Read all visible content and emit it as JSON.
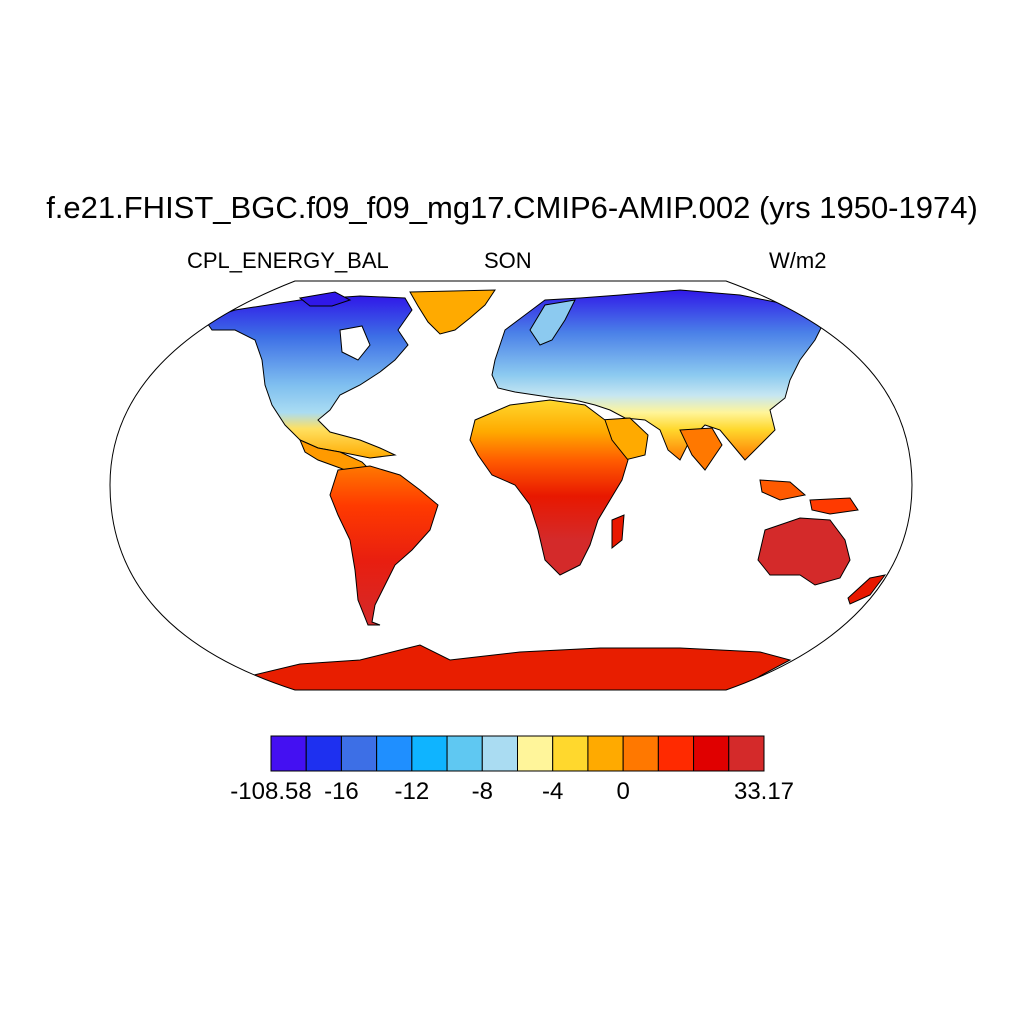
{
  "title": "f.e21.FHIST_BGC.f09_f09_mg17.CMIP6-AMIP.002 (yrs 1950-1974)",
  "variable": "CPL_ENERGY_BAL",
  "season": "SON",
  "units": "W/m2",
  "colorbar": {
    "colors": [
      "#4410f2",
      "#1e30f0",
      "#3d6fe6",
      "#1f8fff",
      "#0fb4ff",
      "#5fc8f2",
      "#aadcf2",
      "#fff59a",
      "#ffd82d",
      "#ffaa00",
      "#ff7800",
      "#ff2a00",
      "#e00000",
      "#d42a2a"
    ],
    "labels": [
      "-108.58",
      "-16",
      "-12",
      "-8",
      "-4",
      "0",
      "33.17"
    ],
    "label_box_index": [
      0,
      2,
      4,
      6,
      8,
      10,
      14
    ]
  }
}
